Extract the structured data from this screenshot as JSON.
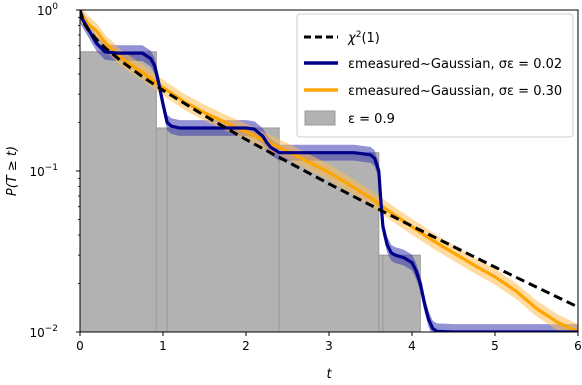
{
  "chart_data": {
    "type": "line",
    "xlabel": "t",
    "ylabel": "P(T ≥ t)",
    "xlim": [
      0,
      6
    ],
    "ylim": [
      0.01,
      1
    ],
    "yscale": "log",
    "x_ticks": [
      0,
      1,
      2,
      3,
      4,
      5,
      6
    ],
    "y_ticks": [
      {
        "value": 0.01,
        "base": "10",
        "exp": "−2"
      },
      {
        "value": 0.1,
        "base": "10",
        "exp": "−1"
      },
      {
        "value": 1,
        "base": "10",
        "exp": "0"
      }
    ],
    "legend_position": "top-right",
    "legend": [
      {
        "id": "chi2",
        "prefix": "χ",
        "sup": "2",
        "suffix": "(1)"
      },
      {
        "id": "g002",
        "label": "εmeasured~Gaussian, σε = 0.02"
      },
      {
        "id": "g030",
        "label": "εmeasured~Gaussian, σε = 0.30"
      },
      {
        "id": "hist",
        "label": "ε = 0.9"
      }
    ],
    "series": [
      {
        "id": "chi2",
        "style": "dashed",
        "color": "#000000",
        "x": [
          0.0,
          0.05,
          0.1,
          0.2,
          0.3,
          0.5,
          0.75,
          1.0,
          1.5,
          2.0,
          2.5,
          3.0,
          3.5,
          4.0,
          4.5,
          5.0,
          5.5,
          6.0
        ],
        "y": [
          1.0,
          0.823,
          0.752,
          0.655,
          0.584,
          0.48,
          0.386,
          0.317,
          0.221,
          0.157,
          0.114,
          0.0833,
          0.0614,
          0.0455,
          0.0339,
          0.0253,
          0.019,
          0.0143
        ]
      },
      {
        "id": "g002",
        "style": "solid",
        "color": "#00008b",
        "band_color": "#3a3ab0",
        "x": [
          0.0,
          0.1,
          0.2,
          0.3,
          0.45,
          0.6,
          0.75,
          0.85,
          0.9,
          0.95,
          1.0,
          1.05,
          1.1,
          1.2,
          1.5,
          1.8,
          2.0,
          2.1,
          2.2,
          2.25,
          2.3,
          2.35,
          2.4,
          2.5,
          2.8,
          3.0,
          3.3,
          3.5,
          3.55,
          3.6,
          3.62,
          3.65,
          3.7,
          3.75,
          3.8,
          3.9,
          4.0,
          4.05,
          4.1,
          4.15,
          4.2,
          4.25,
          4.3,
          4.5,
          5.0,
          5.5,
          6.0
        ],
        "y": [
          0.93,
          0.76,
          0.62,
          0.55,
          0.54,
          0.54,
          0.54,
          0.5,
          0.45,
          0.35,
          0.26,
          0.2,
          0.19,
          0.185,
          0.185,
          0.185,
          0.185,
          0.182,
          0.165,
          0.15,
          0.14,
          0.135,
          0.13,
          0.13,
          0.13,
          0.13,
          0.13,
          0.126,
          0.12,
          0.1,
          0.07,
          0.045,
          0.035,
          0.031,
          0.03,
          0.029,
          0.027,
          0.024,
          0.02,
          0.015,
          0.012,
          0.0105,
          0.0101,
          0.01,
          0.01,
          0.01,
          0.01
        ]
      },
      {
        "id": "g030",
        "style": "solid",
        "color": "#ffa500",
        "band_color": "#ffbe55",
        "x": [
          0.0,
          0.1,
          0.2,
          0.3,
          0.5,
          0.75,
          1.0,
          1.25,
          1.5,
          1.75,
          2.0,
          2.25,
          2.5,
          2.75,
          3.0,
          3.25,
          3.5,
          3.75,
          4.0,
          4.25,
          4.5,
          4.75,
          5.0,
          5.25,
          5.5,
          5.75,
          6.0
        ],
        "y": [
          0.95,
          0.82,
          0.74,
          0.63,
          0.5,
          0.41,
          0.33,
          0.27,
          0.23,
          0.2,
          0.175,
          0.152,
          0.133,
          0.114,
          0.098,
          0.082,
          0.068,
          0.055,
          0.045,
          0.037,
          0.031,
          0.026,
          0.022,
          0.018,
          0.014,
          0.0115,
          0.01
        ]
      }
    ],
    "histogram": {
      "id": "hist",
      "color": "#b2b2b2",
      "edge_color": "#9a9a9a",
      "edges": [
        0.0,
        0.92,
        1.05,
        2.4,
        3.6,
        3.65,
        4.1
      ],
      "heights": [
        0.55,
        0.185,
        0.185,
        0.13,
        0.03,
        0.03
      ]
    }
  }
}
